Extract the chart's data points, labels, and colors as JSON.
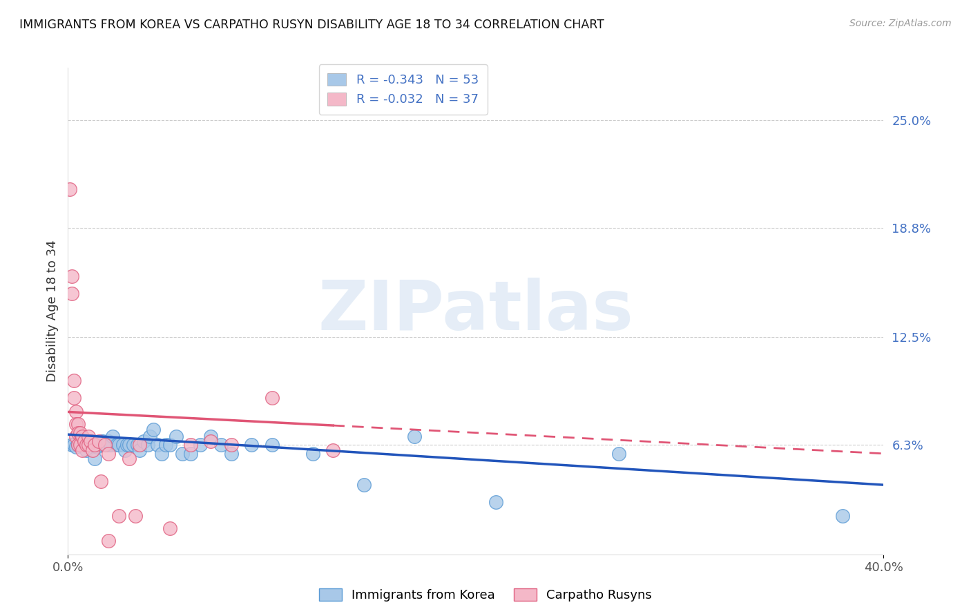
{
  "title": "IMMIGRANTS FROM KOREA VS CARPATHO RUSYN DISABILITY AGE 18 TO 34 CORRELATION CHART",
  "source": "Source: ZipAtlas.com",
  "ylabel": "Disability Age 18 to 34",
  "xlim": [
    0.0,
    0.4
  ],
  "ylim": [
    0.0,
    0.28
  ],
  "ytick_positions": [
    0.063,
    0.125,
    0.188,
    0.25
  ],
  "ytick_labels": [
    "6.3%",
    "12.5%",
    "18.8%",
    "25.0%"
  ],
  "korea_color": "#a8c8e8",
  "korea_edge_color": "#5b9bd5",
  "rusyn_color": "#f4b8c8",
  "rusyn_edge_color": "#e06080",
  "korea_line_color": "#2255bb",
  "rusyn_line_color": "#e05575",
  "watermark": "ZIPatlas",
  "korea_scatter_x": [
    0.002,
    0.003,
    0.004,
    0.005,
    0.006,
    0.007,
    0.008,
    0.009,
    0.01,
    0.011,
    0.012,
    0.013,
    0.014,
    0.015,
    0.016,
    0.017,
    0.018,
    0.019,
    0.02,
    0.021,
    0.022,
    0.024,
    0.025,
    0.027,
    0.028,
    0.029,
    0.03,
    0.032,
    0.034,
    0.035,
    0.037,
    0.039,
    0.04,
    0.042,
    0.044,
    0.046,
    0.048,
    0.05,
    0.053,
    0.056,
    0.06,
    0.065,
    0.07,
    0.075,
    0.08,
    0.09,
    0.1,
    0.12,
    0.145,
    0.17,
    0.21,
    0.27,
    0.38
  ],
  "korea_scatter_y": [
    0.063,
    0.063,
    0.062,
    0.063,
    0.065,
    0.064,
    0.063,
    0.06,
    0.063,
    0.063,
    0.065,
    0.055,
    0.062,
    0.063,
    0.065,
    0.065,
    0.063,
    0.063,
    0.065,
    0.063,
    0.068,
    0.063,
    0.063,
    0.063,
    0.06,
    0.063,
    0.063,
    0.063,
    0.063,
    0.06,
    0.065,
    0.063,
    0.068,
    0.072,
    0.063,
    0.058,
    0.063,
    0.063,
    0.068,
    0.058,
    0.058,
    0.063,
    0.068,
    0.063,
    0.058,
    0.063,
    0.063,
    0.058,
    0.04,
    0.068,
    0.03,
    0.058,
    0.022
  ],
  "rusyn_scatter_x": [
    0.001,
    0.002,
    0.002,
    0.003,
    0.003,
    0.004,
    0.004,
    0.004,
    0.005,
    0.005,
    0.005,
    0.006,
    0.006,
    0.007,
    0.007,
    0.008,
    0.009,
    0.01,
    0.01,
    0.011,
    0.012,
    0.013,
    0.015,
    0.016,
    0.018,
    0.02,
    0.025,
    0.03,
    0.033,
    0.035,
    0.05,
    0.06,
    0.07,
    0.08,
    0.1,
    0.13,
    0.02
  ],
  "rusyn_scatter_y": [
    0.21,
    0.16,
    0.15,
    0.1,
    0.09,
    0.082,
    0.075,
    0.068,
    0.075,
    0.07,
    0.063,
    0.07,
    0.063,
    0.068,
    0.06,
    0.065,
    0.063,
    0.063,
    0.068,
    0.065,
    0.06,
    0.063,
    0.065,
    0.042,
    0.063,
    0.058,
    0.022,
    0.055,
    0.022,
    0.063,
    0.015,
    0.063,
    0.065,
    0.063,
    0.09,
    0.06,
    0.008
  ],
  "korea_line_x0": 0.0,
  "korea_line_y0": 0.069,
  "korea_line_x1": 0.4,
  "korea_line_y1": 0.04,
  "rusyn_line_x0": 0.0,
  "rusyn_line_y0": 0.082,
  "rusyn_line_x1": 0.4,
  "rusyn_line_y1": 0.058
}
